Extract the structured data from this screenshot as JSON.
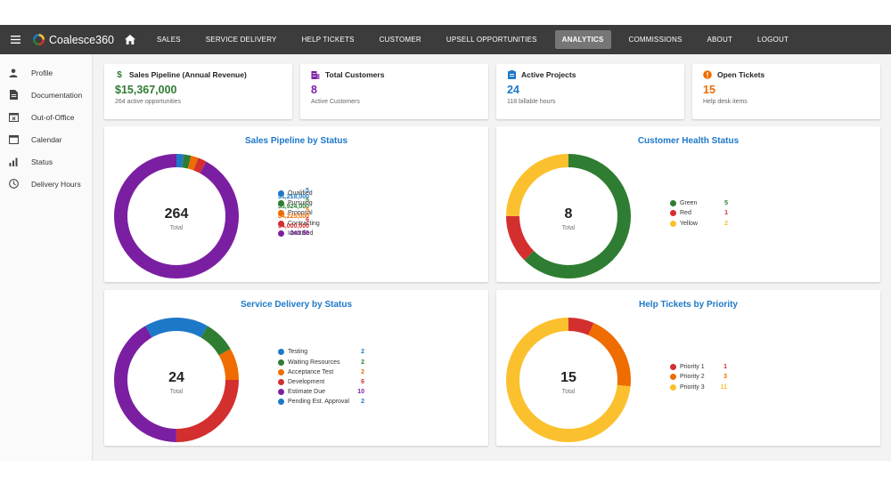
{
  "app": {
    "name": "Coalesce360"
  },
  "nav": [
    {
      "label": "SALES",
      "active": false
    },
    {
      "label": "SERVICE DELIVERY",
      "active": false
    },
    {
      "label": "HELP TICKETS",
      "active": false
    },
    {
      "label": "CUSTOMER",
      "active": false
    },
    {
      "label": "UPSELL OPPORTUNITIES",
      "active": false
    },
    {
      "label": "ANALYTICS",
      "active": true
    },
    {
      "label": "COMMISSIONS",
      "active": false
    },
    {
      "label": "ABOUT",
      "active": false
    },
    {
      "label": "LOGOUT",
      "active": false
    }
  ],
  "sidebar": [
    {
      "label": "Profile",
      "icon": "person-icon"
    },
    {
      "label": "Documentation",
      "icon": "document-icon"
    },
    {
      "label": "Out-of-Office",
      "icon": "calendar-x-icon"
    },
    {
      "label": "Calendar",
      "icon": "calendar-icon"
    },
    {
      "label": "Status",
      "icon": "bar-chart-icon"
    },
    {
      "label": "Delivery Hours",
      "icon": "clock-icon"
    }
  ],
  "stats": [
    {
      "title": "Sales Pipeline (Annual Revenue)",
      "value": "$15,367,000",
      "sub": "264 active opportunities",
      "color": "#2e7d32",
      "icon": "dollar-icon",
      "glyph": "$"
    },
    {
      "title": "Total Customers",
      "value": "8",
      "sub": "Active Customers",
      "color": "#7b1fa2",
      "icon": "building-icon",
      "glyph": ""
    },
    {
      "title": "Active Projects",
      "value": "24",
      "sub": "118 billable hours",
      "color": "#1e78c8",
      "icon": "clipboard-icon",
      "glyph": ""
    },
    {
      "title": "Open Tickets",
      "value": "15",
      "sub": "Help desk items",
      "color": "#ef6c00",
      "icon": "alert-icon",
      "glyph": "!"
    }
  ],
  "charts": [
    {
      "title": "Sales Pipeline by Status",
      "center_value": "264",
      "center_label": "Total",
      "legend_val_x": 230,
      "items": [
        {
          "name": "Qualified",
          "count": 5,
          "display": "5 $1,218,000",
          "color": "#1e78c8"
        },
        {
          "name": "Pursuing",
          "count": 5,
          "display": "5 $5,924,000",
          "color": "#2e7d32"
        },
        {
          "name": "Proposal",
          "count": 5,
          "display": "5 $4,225,000",
          "color": "#ef6c00"
        },
        {
          "name": "Contracting",
          "count": 6,
          "display": "6 $4,000,000",
          "color": "#d32f2f"
        },
        {
          "name": "Identified",
          "count": 243,
          "display": "243 $0",
          "color": "#7b1fa2"
        }
      ]
    },
    {
      "title": "Customer Health Status",
      "center_value": "8",
      "center_label": "Total",
      "legend_val_x": 260,
      "items": [
        {
          "name": "Green",
          "count": 5,
          "display": "5",
          "color": "#2e7d32"
        },
        {
          "name": "Red",
          "count": 1,
          "display": "1",
          "color": "#d32f2f"
        },
        {
          "name": "Yellow",
          "count": 2,
          "display": "2",
          "color": "#fbc02d"
        }
      ]
    },
    {
      "title": "Service Delivery by Status",
      "center_value": "24",
      "center_label": "Total",
      "legend_val_x": 292,
      "items": [
        {
          "name": "Testing",
          "count": 2,
          "display": "2",
          "color": "#1e78c8"
        },
        {
          "name": "Waiting Resources",
          "count": 2,
          "display": "2",
          "color": "#2e7d32"
        },
        {
          "name": "Acceptance Test",
          "count": 2,
          "display": "2",
          "color": "#ef6c00"
        },
        {
          "name": "Development",
          "count": 6,
          "display": "6",
          "color": "#d32f2f"
        },
        {
          "name": "Estimate Due",
          "count": 10,
          "display": "10",
          "color": "#7b1fa2"
        },
        {
          "name": "Pending Est. Approval",
          "count": 2,
          "display": "2",
          "color": "#1e78c8"
        }
      ]
    },
    {
      "title": "Help Tickets by Priority",
      "center_value": "15",
      "center_label": "Total",
      "legend_val_x": 259,
      "items": [
        {
          "name": "Priority 1",
          "count": 1,
          "display": "1",
          "color": "#d32f2f"
        },
        {
          "name": "Priority 2",
          "count": 3,
          "display": "3",
          "color": "#ef6c00"
        },
        {
          "name": "Priority 3",
          "count": 11,
          "display": "11",
          "color": "#fbc02d"
        }
      ]
    }
  ]
}
